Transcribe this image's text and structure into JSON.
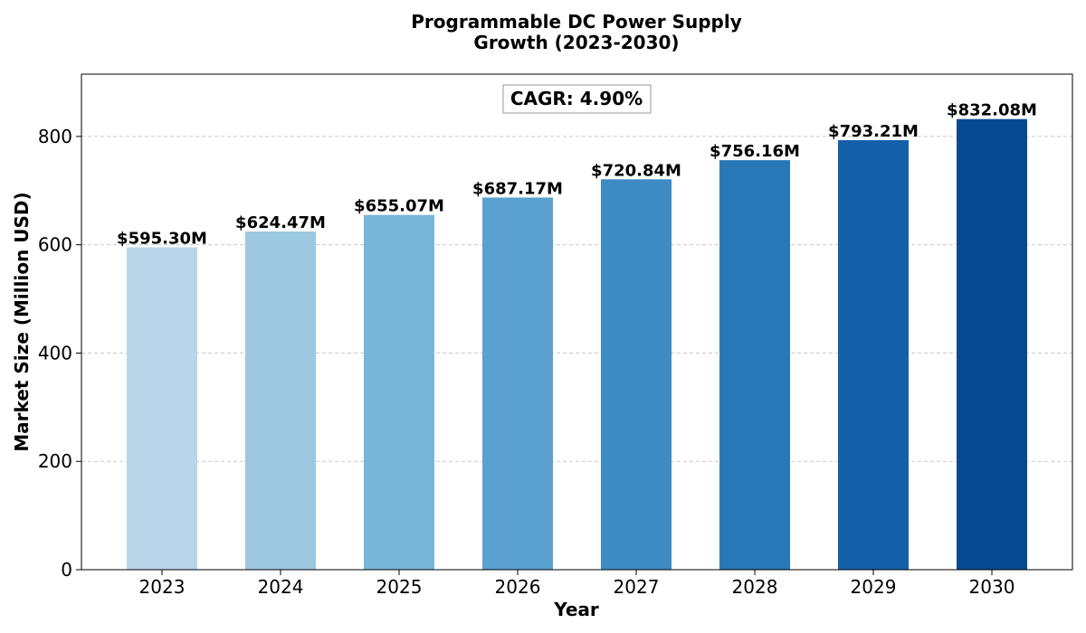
{
  "chart_data": {
    "type": "bar",
    "title_lines": [
      "Programmable DC Power Supply",
      "Growth (2023-2030)"
    ],
    "xlabel": "Year",
    "ylabel": "Market Size (Million USD)",
    "categories": [
      "2023",
      "2024",
      "2025",
      "2026",
      "2027",
      "2028",
      "2029",
      "2030"
    ],
    "values": [
      595.3,
      624.47,
      655.07,
      687.17,
      720.84,
      756.16,
      793.21,
      832.08
    ],
    "data_labels": [
      "$595.30M",
      "$624.47M",
      "$655.07M",
      "$687.17M",
      "$720.84M",
      "$756.16M",
      "$793.21M",
      "$832.08M"
    ],
    "colors": [
      "#b9d5ea",
      "#9bc7e0",
      "#79b5d9",
      "#5aa1cf",
      "#3e8ac4",
      "#2878b8",
      "#1461aa",
      "#084a91"
    ],
    "ylim": [
      0,
      915
    ],
    "yticks": [
      0,
      200,
      400,
      600,
      800
    ],
    "grid": "y-dashed",
    "annotation": "CAGR: 4.90%"
  }
}
